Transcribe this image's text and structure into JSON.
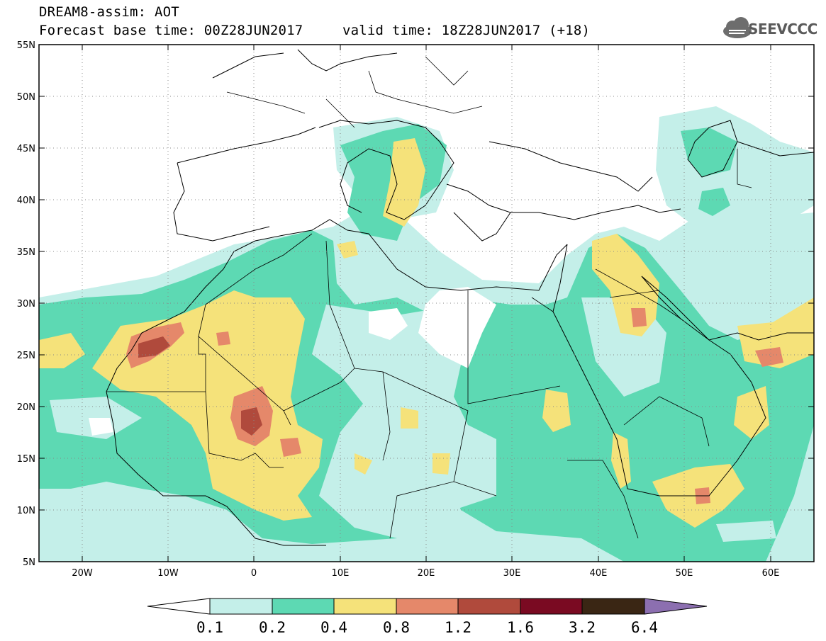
{
  "header": {
    "title": "DREAM8-assim: AOT",
    "forecast_base": "Forecast base time: 00Z28JUN2017",
    "valid_time": "valid time: 18Z28JUN2017 (+18)"
  },
  "logo": {
    "text": "SEEVCCC",
    "icon": "cloud-icon"
  },
  "map": {
    "lat_labels": [
      "55N",
      "50N",
      "45N",
      "40N",
      "35N",
      "30N",
      "25N",
      "20N",
      "15N",
      "10N",
      "5N"
    ],
    "lon_labels": [
      "20W",
      "10W",
      "0",
      "10E",
      "20E",
      "30E",
      "40E",
      "50E",
      "60E"
    ],
    "extent": {
      "lon_min": -25,
      "lon_max": 65,
      "lat_min": 5,
      "lat_max": 55
    },
    "grid": "dotted"
  },
  "colorbar": {
    "ticks": [
      "0.1",
      "0.2",
      "0.4",
      "0.8",
      "1.2",
      "1.6",
      "3.2",
      "6.4"
    ],
    "colors": [
      "#ffffff",
      "#c4efe9",
      "#5dd9b3",
      "#f5e27a",
      "#e5886a",
      "#b04a3c",
      "#7a0a22",
      "#3a2614",
      "#8c6fb0"
    ]
  }
}
